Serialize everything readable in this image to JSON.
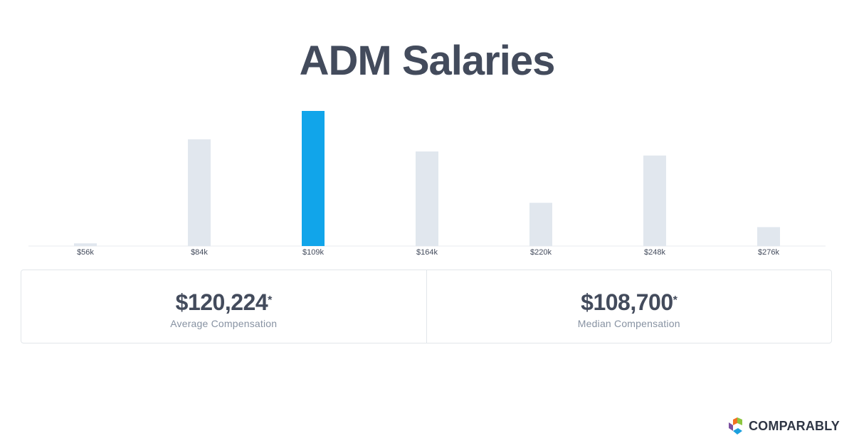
{
  "page": {
    "title": "ADM Salaries"
  },
  "chart_data": {
    "type": "bar",
    "title": "ADM Salaries",
    "categories": [
      "$56k",
      "$84k",
      "$109k",
      "$164k",
      "$220k",
      "$248k",
      "$276k"
    ],
    "values": [
      2,
      79,
      100,
      70,
      32,
      67,
      14
    ],
    "highlight_index": 2,
    "ylim": [
      0,
      100
    ],
    "grid": false,
    "colors": {
      "bar": "#e1e7ee",
      "highlight": "#11a5ea",
      "axis": "#e8ebef",
      "tick_text": "#434b5c"
    }
  },
  "stats": [
    {
      "value": "$120,224",
      "marker": "*",
      "label": "Average Compensation"
    },
    {
      "value": "$108,700",
      "marker": "*",
      "label": "Median Compensation"
    }
  ],
  "brand": {
    "name": "COMPARABLY",
    "logo_colors": [
      "#f37021",
      "#8dc63f",
      "#7b4fa0",
      "#1ca0de"
    ]
  }
}
